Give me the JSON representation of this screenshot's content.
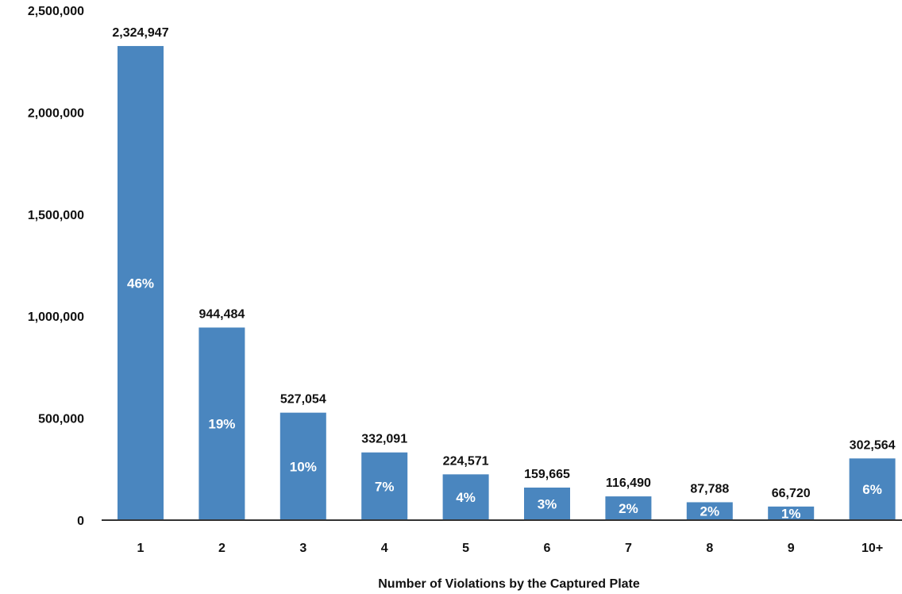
{
  "chart_data": {
    "type": "bar",
    "title": "",
    "xlabel": "Number of Violations by the Captured Plate",
    "ylabel": "",
    "categories": [
      "1",
      "2",
      "3",
      "4",
      "5",
      "6",
      "7",
      "8",
      "9",
      "10+"
    ],
    "values": [
      2324947,
      944484,
      527054,
      332091,
      224571,
      159665,
      116490,
      87788,
      66720,
      302564
    ],
    "value_labels": [
      "2,324,947",
      "944,484",
      "527,054",
      "332,091",
      "224,571",
      "159,665",
      "116,490",
      "87,788",
      "66,720",
      "302,564"
    ],
    "percent_labels": [
      "46%",
      "19%",
      "10%",
      "7%",
      "4%",
      "3%",
      "2%",
      "2%",
      "1%",
      "6%"
    ],
    "ylim": [
      0,
      2500000
    ],
    "yticks": [
      0,
      500000,
      1000000,
      1500000,
      2000000,
      2500000
    ],
    "ytick_labels": [
      "0",
      "500,000",
      "1,000,000",
      "1,500,000",
      "2,000,000",
      "2,500,000"
    ],
    "grid": false,
    "legend": "none",
    "colors": {
      "bar": "#4a86bf",
      "axis": "#333333"
    }
  }
}
